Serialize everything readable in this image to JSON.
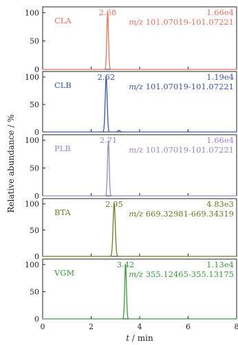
{
  "chart_data": {
    "type": "line",
    "xlabel_prefix": "t",
    "xlabel_suffix": " / min",
    "ylabel": "Relative abundance / %",
    "xlim": [
      0,
      8
    ],
    "xticks": [
      "0",
      "2",
      "4",
      "6",
      "8"
    ],
    "ylim": [
      0,
      110
    ],
    "yticks": [
      "0",
      "50",
      "100"
    ],
    "grid": false,
    "panels": [
      {
        "name": "CLA",
        "color": "#e2755e",
        "peak_time": 2.68,
        "peak_label": "2.68",
        "intensity": "1.66e4",
        "mz_prefix": "m/z",
        "mz_range": " 101.07019-101.07221",
        "width": 0.035,
        "peaks": [
          [
            2.68,
            100
          ]
        ]
      },
      {
        "name": "CLB",
        "color": "#3a55a8",
        "peak_time": 2.62,
        "peak_label": "2.62",
        "intensity": "1.19e4",
        "mz_prefix": "m/z",
        "mz_range": " 101.07019-101.07221",
        "width": 0.04,
        "peaks": [
          [
            2.62,
            100
          ],
          [
            3.15,
            3
          ]
        ]
      },
      {
        "name": "PLB",
        "color": "#9d86c6",
        "peak_time": 2.71,
        "peak_label": "2.71",
        "intensity": "1.66e4",
        "mz_prefix": "m/z",
        "mz_range": " 101.07019-101.07221",
        "width": 0.035,
        "peaks": [
          [
            2.71,
            100
          ]
        ]
      },
      {
        "name": "BTA",
        "color": "#6f7a25",
        "peak_time": 2.95,
        "peak_label": "2.95",
        "intensity": "4.83e3",
        "mz_prefix": "m/z",
        "mz_range": " 669.32981-669.34319",
        "width": 0.045,
        "peaks": [
          [
            2.95,
            100
          ]
        ]
      },
      {
        "name": "VGM",
        "color": "#3a9a3e",
        "peak_time": 3.42,
        "peak_label": "3.42",
        "intensity": "1.13e4",
        "mz_prefix": "m/z",
        "mz_range": " 355.12465-355.13175",
        "width": 0.035,
        "peaks": [
          [
            3.42,
            100
          ]
        ]
      }
    ]
  }
}
